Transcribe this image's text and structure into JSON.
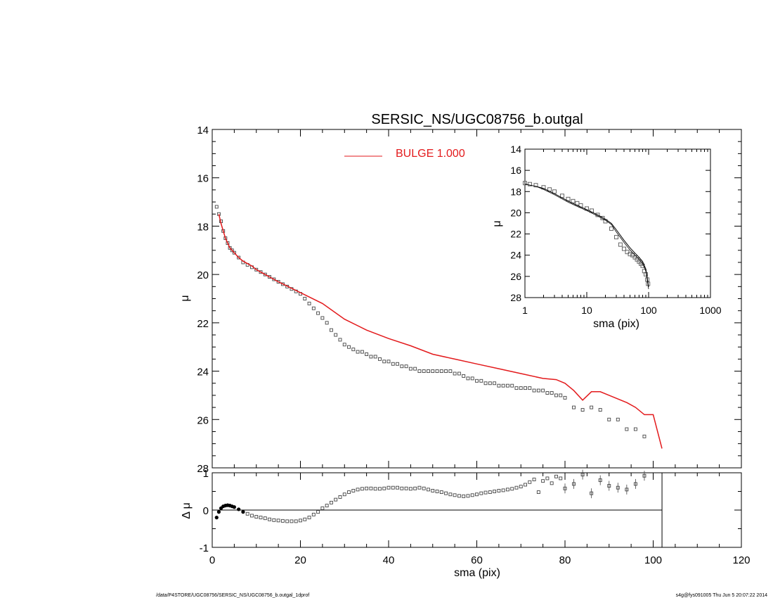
{
  "title": "SERSIC_NS/UGC08756_b.outgal",
  "footer_left": "/data/P4STORE/UGC08756/SERSIC_NS/UGC08756_b.outgal_1dprof",
  "footer_right": "s4g@fys091005  Thu Jun  5 20:07:22 2014",
  "colors": {
    "model": "#e31a1c",
    "data": "#555555",
    "axes": "#000000"
  },
  "chart_data": [
    {
      "name": "main-profile",
      "type": "scatter",
      "title": "SERSIC_NS/UGC08756_b.outgal",
      "xlabel": "",
      "ylabel": "μ",
      "xlim": [
        0,
        120
      ],
      "ylim": [
        28,
        14
      ],
      "y_inverted": true,
      "x_ticks": [
        0,
        20,
        40,
        60,
        80,
        100,
        120
      ],
      "y_ticks": [
        14,
        16,
        18,
        20,
        22,
        24,
        26,
        28
      ],
      "legend": {
        "position": "top-center",
        "entries": [
          {
            "label": "BULGE",
            "value": "1.000",
            "color": "#e31a1c"
          }
        ]
      },
      "series": [
        {
          "kind": "points",
          "x": [
            1.0,
            1.5,
            2.0,
            2.5,
            3.0,
            3.5,
            4.0,
            4.5,
            5,
            6,
            7,
            8,
            9,
            10,
            11,
            12,
            13,
            14,
            15,
            16,
            17,
            18,
            19,
            20,
            21,
            22,
            23,
            24,
            25,
            26,
            27,
            28,
            29,
            30,
            31,
            32,
            33,
            34,
            35,
            36,
            37,
            38,
            39,
            40,
            41,
            42,
            43,
            44,
            45,
            46,
            47,
            48,
            49,
            50,
            51,
            52,
            53,
            54,
            55,
            56,
            57,
            58,
            59,
            60,
            61,
            62,
            63,
            64,
            65,
            66,
            67,
            68,
            69,
            70,
            71,
            72,
            73,
            74,
            75,
            76,
            77,
            78,
            79,
            80,
            82,
            84,
            86,
            88,
            90,
            92,
            94,
            96,
            98
          ],
          "y": [
            17.2,
            17.5,
            17.8,
            18.2,
            18.5,
            18.7,
            18.9,
            19.0,
            19.1,
            19.3,
            19.5,
            19.6,
            19.7,
            19.8,
            19.9,
            20.0,
            20.1,
            20.2,
            20.3,
            20.4,
            20.5,
            20.6,
            20.7,
            20.8,
            21.0,
            21.2,
            21.4,
            21.6,
            21.8,
            22.0,
            22.3,
            22.5,
            22.7,
            22.9,
            23.0,
            23.1,
            23.2,
            23.2,
            23.3,
            23.4,
            23.4,
            23.5,
            23.6,
            23.6,
            23.7,
            23.7,
            23.8,
            23.8,
            23.9,
            23.9,
            24.0,
            24.0,
            24.0,
            24.0,
            24.0,
            24.0,
            24.0,
            24.0,
            24.1,
            24.1,
            24.2,
            24.3,
            24.3,
            24.4,
            24.4,
            24.5,
            24.5,
            24.5,
            24.6,
            24.6,
            24.6,
            24.6,
            24.7,
            24.7,
            24.7,
            24.7,
            24.8,
            24.8,
            24.8,
            24.9,
            24.9,
            25.0,
            25.0,
            25.1,
            25.5,
            25.6,
            25.5,
            25.6,
            26.0,
            26.0,
            26.4,
            26.4,
            26.7
          ]
        },
        {
          "kind": "line",
          "name": "BULGE",
          "color": "#e31a1c",
          "x": [
            1.5,
            2.0,
            3.0,
            4.0,
            5.0,
            6.0,
            7.0,
            8.0,
            9.0,
            10.0,
            15,
            20,
            25,
            30,
            35,
            40,
            45,
            50,
            55,
            60,
            65,
            70,
            75,
            78,
            80,
            82,
            84,
            86,
            88,
            90,
            92,
            94,
            96,
            98,
            100,
            102
          ],
          "y": [
            17.5,
            17.9,
            18.5,
            18.9,
            19.1,
            19.3,
            19.45,
            19.55,
            19.65,
            19.8,
            20.3,
            20.75,
            21.2,
            21.85,
            22.3,
            22.65,
            22.95,
            23.3,
            23.5,
            23.7,
            23.9,
            24.1,
            24.3,
            24.35,
            24.5,
            24.8,
            25.2,
            24.85,
            24.85,
            25.0,
            25.15,
            25.3,
            25.5,
            25.8,
            25.8,
            27.2
          ]
        }
      ]
    },
    {
      "name": "residuals",
      "type": "scatter",
      "xlabel": "sma (pix)",
      "ylabel": "Δ μ",
      "xlim": [
        0,
        120
      ],
      "ylim": [
        -1.0,
        1.0
      ],
      "x_ticks": [
        0,
        20,
        40,
        60,
        80,
        100,
        120
      ],
      "y_ticks": [
        -1,
        0,
        1
      ],
      "reference_line_y": 0,
      "vertical_line_x": 102,
      "series": [
        {
          "kind": "points",
          "x": [
            1.0,
            1.5,
            2.0,
            2.5,
            3.0,
            3.5,
            4.0,
            4.5,
            5,
            6,
            7,
            8,
            9,
            10,
            11,
            12,
            13,
            14,
            15,
            16,
            17,
            18,
            19,
            20,
            21,
            22,
            23,
            24,
            25,
            26,
            27,
            28,
            29,
            30,
            31,
            32,
            33,
            34,
            35,
            36,
            37,
            38,
            39,
            40,
            41,
            42,
            43,
            44,
            45,
            46,
            47,
            48,
            49,
            50,
            51,
            52,
            53,
            54,
            55,
            56,
            57,
            58,
            59,
            60,
            61,
            62,
            63,
            64,
            65,
            66,
            67,
            68,
            69,
            70,
            71,
            72,
            73,
            74,
            75,
            76,
            77,
            78,
            79,
            80,
            82,
            84,
            86,
            88,
            90,
            92,
            94,
            96,
            98
          ],
          "y": [
            -0.2,
            -0.05,
            0.05,
            0.1,
            0.12,
            0.13,
            0.12,
            0.1,
            0.08,
            0.02,
            -0.05,
            -0.1,
            -0.15,
            -0.18,
            -0.2,
            -0.22,
            -0.25,
            -0.27,
            -0.28,
            -0.29,
            -0.3,
            -0.3,
            -0.3,
            -0.28,
            -0.25,
            -0.2,
            -0.12,
            -0.05,
            0.05,
            0.12,
            0.2,
            0.28,
            0.35,
            0.42,
            0.48,
            0.52,
            0.55,
            0.57,
            0.58,
            0.58,
            0.57,
            0.57,
            0.58,
            0.6,
            0.6,
            0.6,
            0.58,
            0.58,
            0.57,
            0.58,
            0.6,
            0.58,
            0.55,
            0.52,
            0.5,
            0.48,
            0.45,
            0.42,
            0.4,
            0.38,
            0.37,
            0.38,
            0.4,
            0.42,
            0.45,
            0.47,
            0.48,
            0.5,
            0.52,
            0.53,
            0.55,
            0.57,
            0.6,
            0.63,
            0.68,
            0.75,
            0.82,
            0.48,
            0.78,
            0.85,
            0.72,
            0.9,
            0.85,
            0.58,
            0.7,
            0.95,
            0.45,
            0.8,
            0.65,
            0.6,
            0.55,
            0.7,
            0.92
          ]
        }
      ]
    },
    {
      "name": "inset-log",
      "type": "line",
      "xlabel": "sma (pix)",
      "ylabel": "μ",
      "xlim": [
        1,
        1000
      ],
      "x_scale": "log",
      "ylim": [
        28,
        14
      ],
      "y_inverted": true,
      "x_ticks": [
        1,
        10,
        100,
        1000
      ],
      "y_ticks": [
        14,
        16,
        18,
        20,
        22,
        24,
        26,
        28
      ],
      "series": [
        {
          "kind": "points",
          "x": [
            1.0,
            1.2,
            1.5,
            2,
            2.5,
            3,
            4,
            5,
            6,
            7,
            8,
            10,
            12,
            15,
            18,
            20,
            25,
            30,
            35,
            40,
            45,
            50,
            55,
            60,
            65,
            70,
            75,
            80,
            85,
            90,
            95,
            98
          ],
          "y": [
            17.2,
            17.3,
            17.4,
            17.6,
            17.8,
            18.0,
            18.4,
            18.7,
            18.9,
            19.1,
            19.3,
            19.6,
            19.8,
            20.2,
            20.5,
            20.8,
            21.5,
            22.3,
            23.0,
            23.4,
            23.7,
            23.9,
            24.0,
            24.2,
            24.4,
            24.6,
            24.8,
            25.0,
            25.5,
            25.8,
            26.3,
            26.7
          ]
        },
        {
          "kind": "line",
          "x": [
            1.0,
            1.5,
            2,
            3,
            4,
            5,
            7,
            10,
            15,
            20,
            25,
            30,
            40,
            50,
            60,
            70,
            80,
            90,
            100
          ],
          "y": [
            17.3,
            17.5,
            17.7,
            18.2,
            18.6,
            18.9,
            19.3,
            19.7,
            20.2,
            20.6,
            21.0,
            21.6,
            22.6,
            23.3,
            23.8,
            24.2,
            24.6,
            25.3,
            27.0
          ]
        },
        {
          "kind": "line",
          "x": [
            1.5,
            2,
            3,
            4,
            5,
            7,
            10,
            15,
            20,
            25,
            30,
            40,
            50,
            60,
            70,
            80,
            90,
            100
          ],
          "y": [
            17.5,
            17.8,
            18.3,
            18.7,
            19.0,
            19.4,
            19.8,
            20.3,
            20.7,
            21.1,
            21.8,
            22.8,
            23.5,
            24.0,
            24.4,
            24.8,
            25.5,
            27.2
          ]
        }
      ]
    }
  ]
}
